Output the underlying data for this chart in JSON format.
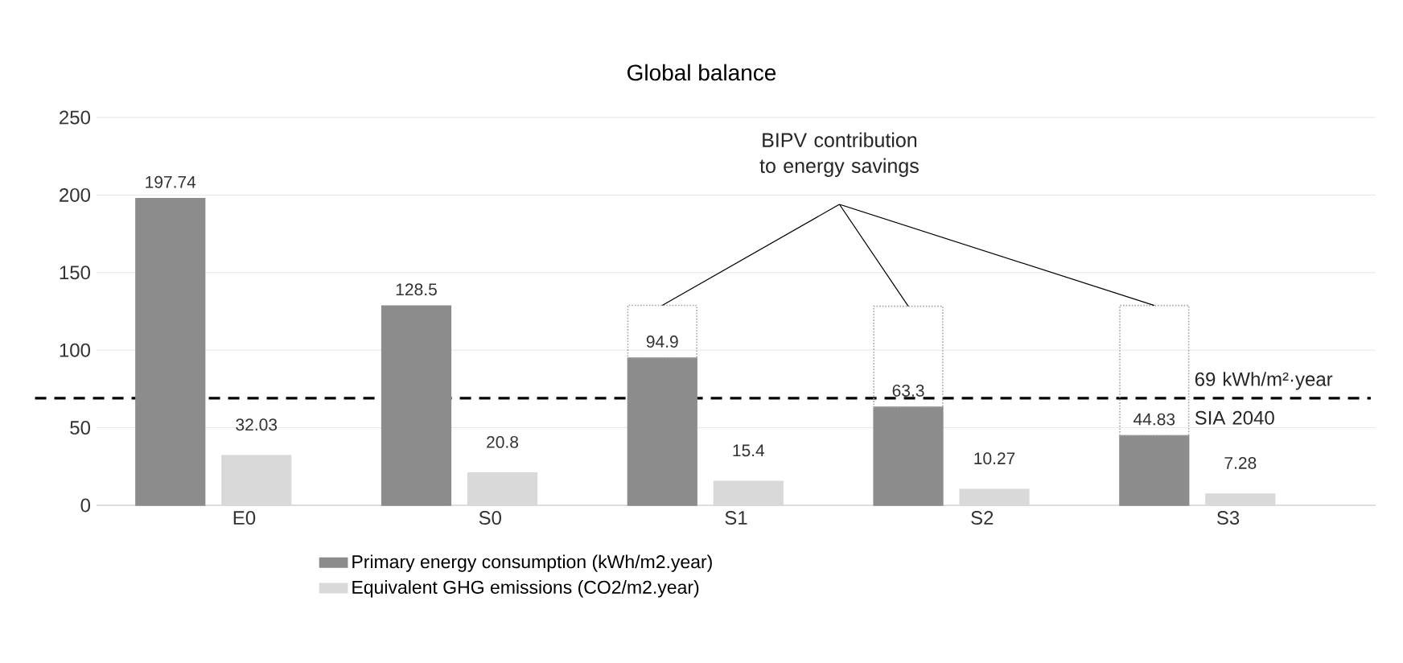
{
  "chart_data": {
    "type": "bar",
    "title": "Global balance",
    "categories": [
      "E0",
      "S0",
      "S1",
      "S2",
      "S3"
    ],
    "series": [
      {
        "name": "Primary energy consumption (kWh/m2.year)",
        "color": "#8c8c8c",
        "values": [
          197.74,
          128.5,
          94.9,
          63.3,
          44.83
        ],
        "value_labels": [
          "197.74",
          "128.5",
          "94.9",
          "63.3",
          "44.83"
        ]
      },
      {
        "name": "Equivalent GHG emissions (CO2/m2.year)",
        "color": "#d9d9d9",
        "values": [
          32.03,
          20.8,
          15.4,
          10.27,
          7.28
        ],
        "value_labels": [
          "32.03",
          "20.8",
          "15.4",
          "10.27",
          "7.28"
        ]
      },
      {
        "color": "#a6a6a6",
        "values": [
          null,
          null,
          34,
          65,
          84
        ],
        "base": [
          null,
          null,
          94.9,
          63.3,
          44.83
        ],
        "line_style": "dotted"
      }
    ],
    "ylim": [
      0,
      250
    ],
    "yticks": [
      0,
      50,
      100,
      150,
      200,
      250
    ],
    "grid": "y",
    "legend": "bottom",
    "ref_lines": [
      {
        "axis": "y",
        "value": 69,
        "label": "69 kWh/m²·year SIA 2040",
        "line_style": "dashed",
        "color": "#000000"
      }
    ],
    "annotations": [
      "BIPV contribution to energy savings"
    ]
  }
}
